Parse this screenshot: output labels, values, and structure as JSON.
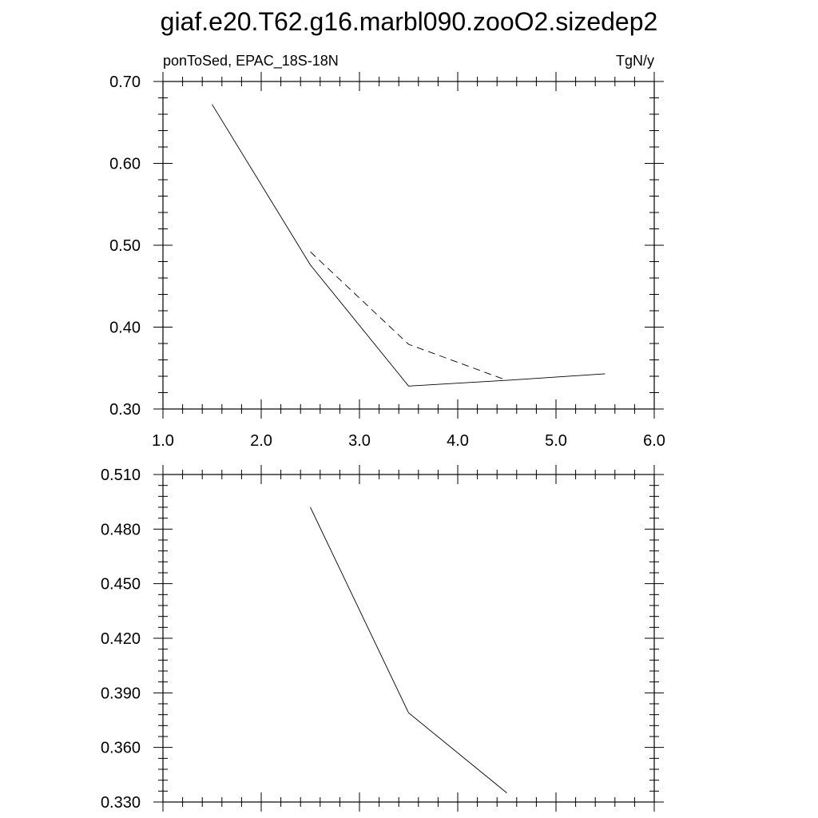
{
  "title": "giaf.e20.T62.g16.marbl090.zooO2.sizedep2",
  "chart_data": [
    {
      "type": "line",
      "left_label": "ponToSed, EPAC_18S-18N",
      "right_label": "TgN/y",
      "xlim": [
        1.0,
        6.0
      ],
      "ylim": [
        0.3,
        0.7
      ],
      "xticks": [
        "1.0",
        "2.0",
        "3.0",
        "4.0",
        "5.0",
        "6.0"
      ],
      "yticks": [
        "0.30",
        "0.40",
        "0.50",
        "0.60",
        "0.70"
      ],
      "grid": false,
      "series": [
        {
          "style": "solid",
          "x": [
            1.5,
            2.5,
            3.5,
            4.5,
            5.5
          ],
          "y": [
            0.672,
            0.476,
            0.328,
            0.335,
            0.343
          ]
        },
        {
          "style": "dashed",
          "x": [
            2.5,
            3.5,
            4.5
          ],
          "y": [
            0.492,
            0.379,
            0.335
          ]
        }
      ]
    },
    {
      "type": "line",
      "xlim": [
        1.0,
        6.0
      ],
      "ylim": [
        0.33,
        0.51
      ],
      "yticks": [
        "0.330",
        "0.360",
        "0.390",
        "0.420",
        "0.450",
        "0.480",
        "0.510"
      ],
      "grid": false,
      "series": [
        {
          "style": "solid",
          "x": [
            2.5,
            3.5,
            4.5
          ],
          "y": [
            0.492,
            0.379,
            0.335
          ]
        }
      ]
    }
  ]
}
